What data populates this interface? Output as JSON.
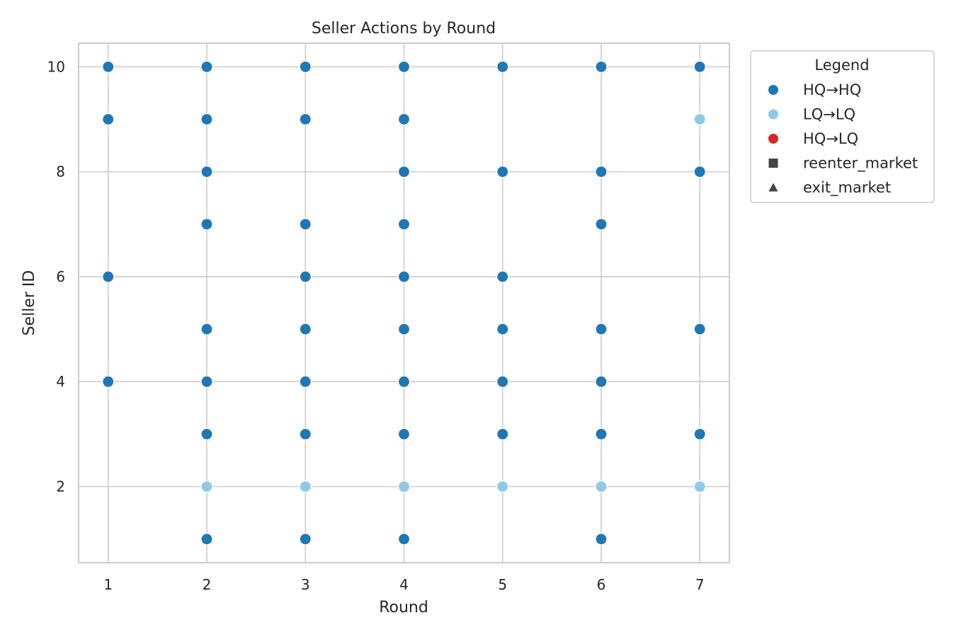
{
  "chart_data": {
    "type": "scatter",
    "title": "Seller Actions by Round",
    "xlabel": "Round",
    "ylabel": "Seller ID",
    "xlim": [
      0.7,
      7.3
    ],
    "ylim": [
      0.55,
      10.45
    ],
    "x_ticks": [
      1,
      2,
      3,
      4,
      5,
      6,
      7
    ],
    "y_ticks": [
      2,
      4,
      6,
      8,
      10
    ],
    "grid": true,
    "legend_placement": "outside-top-right",
    "legend": {
      "title": "Legend",
      "entries": [
        {
          "label": "HQ→HQ",
          "marker": "circle",
          "color": "#1f77b4"
        },
        {
          "label": "LQ→LQ",
          "marker": "circle",
          "color": "#8ecae6"
        },
        {
          "label": "HQ→LQ",
          "marker": "circle",
          "color": "#d62728"
        },
        {
          "label": "reenter_market",
          "marker": "square",
          "color": "#444444"
        },
        {
          "label": "exit_market",
          "marker": "triangle",
          "color": "#444444"
        }
      ]
    },
    "series": [
      {
        "name": "HQ→HQ",
        "color": "#1f77b4",
        "points": [
          [
            1,
            10
          ],
          [
            1,
            9
          ],
          [
            1,
            6
          ],
          [
            1,
            4
          ],
          [
            2,
            10
          ],
          [
            2,
            9
          ],
          [
            2,
            8
          ],
          [
            2,
            7
          ],
          [
            2,
            5
          ],
          [
            2,
            4
          ],
          [
            2,
            3
          ],
          [
            2,
            1
          ],
          [
            3,
            10
          ],
          [
            3,
            9
          ],
          [
            3,
            7
          ],
          [
            3,
            6
          ],
          [
            3,
            5
          ],
          [
            3,
            4
          ],
          [
            3,
            3
          ],
          [
            3,
            1
          ],
          [
            4,
            10
          ],
          [
            4,
            9
          ],
          [
            4,
            8
          ],
          [
            4,
            7
          ],
          [
            4,
            6
          ],
          [
            4,
            5
          ],
          [
            4,
            4
          ],
          [
            4,
            3
          ],
          [
            4,
            1
          ],
          [
            5,
            10
          ],
          [
            5,
            8
          ],
          [
            5,
            6
          ],
          [
            5,
            5
          ],
          [
            5,
            4
          ],
          [
            5,
            3
          ],
          [
            6,
            10
          ],
          [
            6,
            8
          ],
          [
            6,
            7
          ],
          [
            6,
            5
          ],
          [
            6,
            4
          ],
          [
            6,
            3
          ],
          [
            6,
            1
          ],
          [
            7,
            10
          ],
          [
            7,
            8
          ],
          [
            7,
            5
          ],
          [
            7,
            3
          ]
        ]
      },
      {
        "name": "LQ→LQ",
        "color": "#8ecae6",
        "points": [
          [
            2,
            2
          ],
          [
            3,
            2
          ],
          [
            4,
            2
          ],
          [
            5,
            2
          ],
          [
            6,
            2
          ],
          [
            7,
            2
          ],
          [
            7,
            9
          ]
        ]
      }
    ]
  }
}
